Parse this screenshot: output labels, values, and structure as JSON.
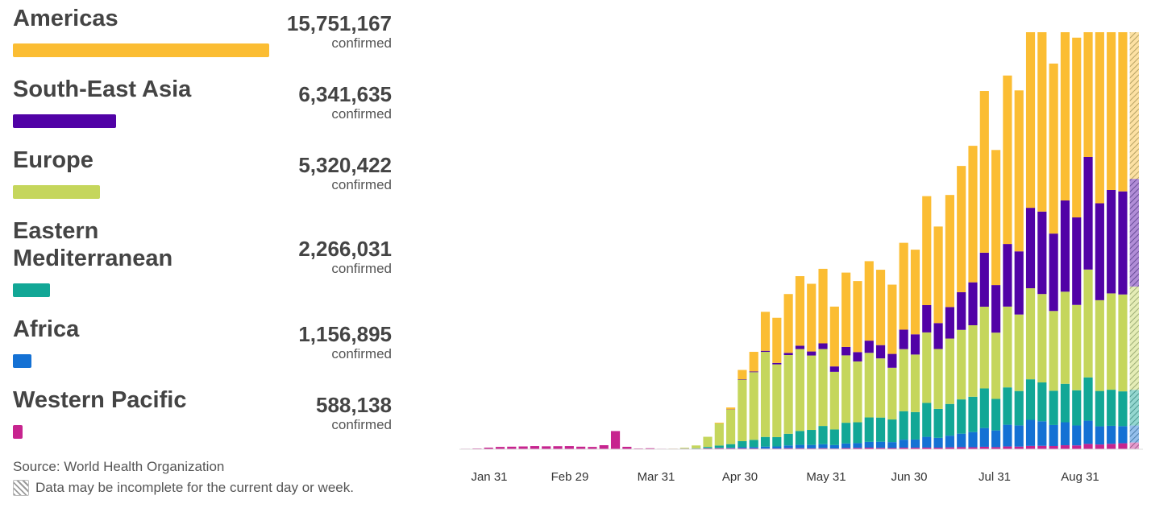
{
  "regions": [
    {
      "name": "Americas",
      "value": "15,751,167",
      "label": "confirmed",
      "color": "#fbbd33"
    },
    {
      "name": "South-East Asia",
      "value": "6,341,635",
      "label": "confirmed",
      "color": "#5102a6"
    },
    {
      "name": "Europe",
      "value": "5,320,422",
      "label": "confirmed",
      "color": "#c5d65c"
    },
    {
      "name": "Eastern Mediterranean",
      "value": "2,266,031",
      "label": "confirmed",
      "color": "#12a796"
    },
    {
      "name": "Africa",
      "value": "1,156,895",
      "label": "confirmed",
      "color": "#1471d4"
    },
    {
      "name": "Western Pacific",
      "value": "588,138",
      "label": "confirmed",
      "color": "#c7248f"
    }
  ],
  "source": "Source: World Health Organization",
  "note": "Data may be incomplete for the current day or week.",
  "chart_data": {
    "type": "bar",
    "stacked": true,
    "x_tick_labels": [
      "Jan 31",
      "Feb 29",
      "Mar 31",
      "Apr 30",
      "May 31",
      "Jun 30",
      "Jul 31",
      "Aug 31"
    ],
    "stack_order": [
      "Western Pacific",
      "Africa",
      "Eastern Mediterranean",
      "Europe",
      "South-East Asia",
      "Americas"
    ],
    "series": [
      {
        "name": "Western Pacific",
        "color": "#c7248f",
        "values": [
          0.4,
          0.6,
          1.3,
          1.9,
          2.1,
          2.3,
          2.6,
          2.4,
          2.5,
          2.6,
          2.1,
          1.9,
          3.3,
          14.9,
          2.0,
          0.6,
          0.8,
          0.4,
          0.4,
          0.5,
          0.5,
          0.7,
          0.9,
          0.9,
          0.7,
          0.7,
          0.5,
          0.7,
          0.9,
          0.8,
          0.7,
          0.8,
          0.7,
          0.9,
          1.1,
          1.2,
          1.1,
          1.1,
          1.2,
          1.3,
          1.2,
          1.4,
          1.6,
          1.7,
          1.6,
          1.8,
          2.0,
          2.2,
          2.3,
          2.5,
          2.7,
          2.9,
          3.2,
          3.4,
          3.8,
          4.1,
          4.5,
          5.1,
          5.6
        ]
      },
      {
        "name": "Africa",
        "color": "#1471d4",
        "values": [
          0,
          0,
          0,
          0,
          0,
          0,
          0,
          0,
          0,
          0,
          0,
          0,
          0,
          0,
          0,
          0,
          0,
          0,
          0,
          0,
          0,
          0.1,
          0.2,
          0.5,
          0.8,
          1.2,
          1.5,
          1.9,
          2.3,
          2.6,
          2.8,
          3.0,
          3.3,
          3.6,
          4.0,
          4.4,
          5.0,
          5.5,
          6.2,
          7.0,
          7.8,
          8.8,
          9.9,
          11.0,
          12.4,
          13.8,
          15.6,
          17.3,
          18.5,
          19.6,
          19.4,
          18.9,
          18.4,
          17.6,
          16.6,
          15.7,
          15.0,
          14.6,
          14.1
        ]
      },
      {
        "name": "Eastern Mediterranean",
        "color": "#12a796",
        "values": [
          0,
          0,
          0,
          0,
          0,
          0,
          0,
          0,
          0,
          0,
          0,
          0,
          0,
          0,
          0,
          0,
          0,
          0,
          0,
          0.1,
          0.3,
          1.0,
          2.0,
          3.3,
          4.5,
          6.0,
          7.2,
          8.5,
          9.8,
          10.9,
          12.3,
          13.8,
          15.0,
          16.2,
          17.4,
          18.6,
          19.7,
          20.9,
          22.1,
          23.5,
          24.6,
          25.9,
          26.9,
          28.0,
          28.8,
          29.1,
          29.5,
          29.8,
          30.0,
          30.5,
          30.8,
          30.9,
          30.8,
          31.1,
          31.0,
          30.6,
          30.1,
          29.7,
          29.6
        ]
      },
      {
        "name": "Europe",
        "color": "#c5d65c",
        "values": [
          0,
          0,
          0,
          0,
          0,
          0,
          0,
          0,
          0,
          0,
          0,
          0,
          0,
          0,
          0,
          0,
          0,
          0,
          0.1,
          0.6,
          2.3,
          8.0,
          18.5,
          31.8,
          45.9,
          57.2,
          63.7,
          66.7,
          66.2,
          63.9,
          60.9,
          58.2,
          55.4,
          52.7,
          50.8,
          49.2,
          48.2,
          47.8,
          48.1,
          49.2,
          51.1,
          53.6,
          55.4,
          56.8,
          58.3,
          60.1,
          62.0,
          64.4,
          66.7,
          68.5,
          70.0,
          71.8,
          73.8,
          75.4,
          77.1,
          78.5,
          80.3,
          82.7,
          85.8
        ]
      },
      {
        "name": "South-East Asia",
        "color": "#5102a6",
        "values": [
          0,
          0,
          0,
          0,
          0,
          0,
          0,
          0,
          0,
          0,
          0,
          0,
          0,
          0,
          0,
          0,
          0,
          0,
          0,
          0,
          0,
          0,
          0,
          0.2,
          0.3,
          0.6,
          0.8,
          1.3,
          1.8,
          2.6,
          3.3,
          4.3,
          5.2,
          6.6,
          7.8,
          9.3,
          10.8,
          12.8,
          15.1,
          17.3,
          19.8,
          23.2,
          26.7,
          30.8,
          35.0,
          39.7,
          44.5,
          49.9,
          55.1,
          60.5,
          65.3,
          69.7,
          73.1,
          77.3,
          80.5,
          83.8,
          86.2,
          88.0,
          89.4
        ]
      },
      {
        "name": "Americas",
        "color": "#fbbd33",
        "values": [
          0,
          0,
          0,
          0,
          0,
          0,
          0,
          0,
          0,
          0,
          0,
          0,
          0,
          0,
          0,
          0,
          0,
          0,
          0,
          0,
          0,
          0,
          0.6,
          1.8,
          6.9,
          16.6,
          29.2,
          41.4,
          49.5,
          54.3,
          55.4,
          56.4,
          57.5,
          58.1,
          59.3,
          60.5,
          61.4,
          64.0,
          67.3,
          72.4,
          79.0,
          86.4,
          95.0,
          103.1,
          111.3,
          118.9,
          126.4,
          134.3,
          140.4,
          144.8,
          148.7,
          153.1,
          156.3,
          158.8,
          160.8,
          161.9,
          161.3,
          160.2,
          158.5
        ]
      }
    ]
  }
}
